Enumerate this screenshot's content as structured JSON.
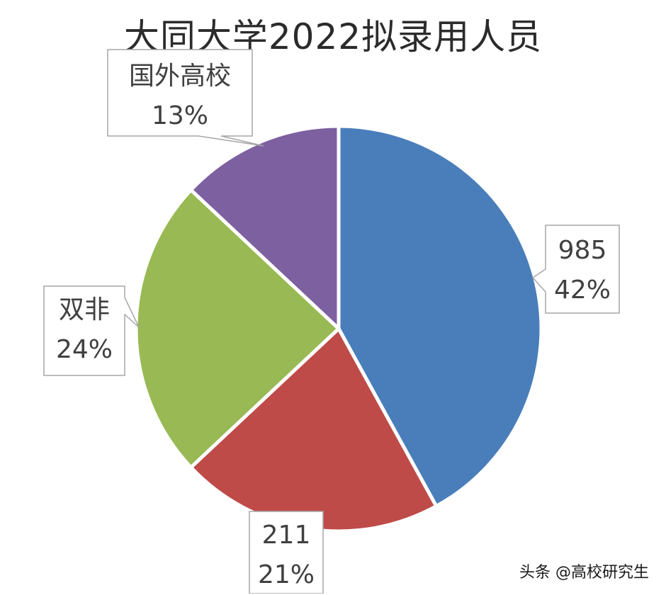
{
  "chart_data": {
    "type": "pie",
    "title": "大同大学2022拟录用人员",
    "slices": [
      {
        "label": "985",
        "percent_label": "42%",
        "value": 42,
        "color": "#4a7ebb"
      },
      {
        "label": "211",
        "percent_label": "21%",
        "value": 21,
        "color": "#be4b48"
      },
      {
        "label": "双非",
        "percent_label": "24%",
        "value": 24,
        "color": "#98b954"
      },
      {
        "label": "国外高校",
        "percent_label": "13%",
        "value": 13,
        "color": "#7d60a0"
      }
    ]
  },
  "watermark": "头条 @高校研究生"
}
